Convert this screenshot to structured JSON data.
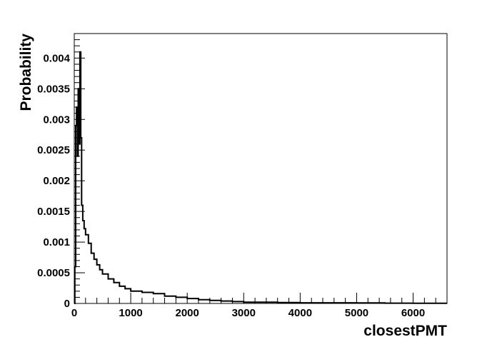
{
  "chart_data": {
    "type": "line",
    "title": "",
    "xlabel": "closestPMT",
    "ylabel": "Probability",
    "xlim": [
      0,
      6600
    ],
    "ylim": [
      0,
      0.0044
    ],
    "grid": false,
    "legend": "none",
    "line_color": "#000000",
    "x_ticks": [
      {
        "value": 0,
        "label": "0"
      },
      {
        "value": 1000,
        "label": "1000"
      },
      {
        "value": 2000,
        "label": "2000"
      },
      {
        "value": 3000,
        "label": "3000"
      },
      {
        "value": 4000,
        "label": "4000"
      },
      {
        "value": 5000,
        "label": "5000"
      },
      {
        "value": 6000,
        "label": "6000"
      }
    ],
    "y_ticks": [
      {
        "value": 0,
        "label": "0"
      },
      {
        "value": 0.0005,
        "label": "0.0005"
      },
      {
        "value": 0.001,
        "label": "0.001"
      },
      {
        "value": 0.0015,
        "label": "0.0015"
      },
      {
        "value": 0.002,
        "label": "0.002"
      },
      {
        "value": 0.0025,
        "label": "0.0025"
      },
      {
        "value": 0.003,
        "label": "0.003"
      },
      {
        "value": 0.0035,
        "label": "0.0035"
      },
      {
        "value": 0.004,
        "label": "0.004"
      }
    ],
    "series": [
      {
        "x": [
          0,
          10,
          25,
          40,
          55,
          70,
          85,
          100,
          115,
          130,
          150,
          175,
          200,
          250,
          300,
          350,
          400,
          450,
          500,
          600,
          700,
          800,
          900,
          1000,
          1200,
          1400,
          1600,
          1800,
          2000,
          2200,
          2400,
          2600,
          2800,
          3000,
          3300,
          3600,
          4000,
          4500,
          5000,
          5500,
          6000,
          6600
        ],
        "y": [
          0.0,
          0.0006,
          0.0029,
          0.0032,
          0.0024,
          0.0035,
          0.0026,
          0.0041,
          0.0027,
          0.0016,
          0.00135,
          0.00122,
          0.00112,
          0.00098,
          0.00082,
          0.00072,
          0.00063,
          0.00055,
          0.00048,
          0.0004,
          0.00034,
          0.00028,
          0.00024,
          0.0002,
          0.00018,
          0.00016,
          0.00012,
          0.0001,
          8e-05,
          6e-05,
          5e-05,
          4e-05,
          3e-05,
          2e-05,
          2e-05,
          1.5e-05,
          1e-05,
          1e-05,
          8e-06,
          5e-06,
          4e-06,
          3e-06
        ]
      }
    ]
  }
}
